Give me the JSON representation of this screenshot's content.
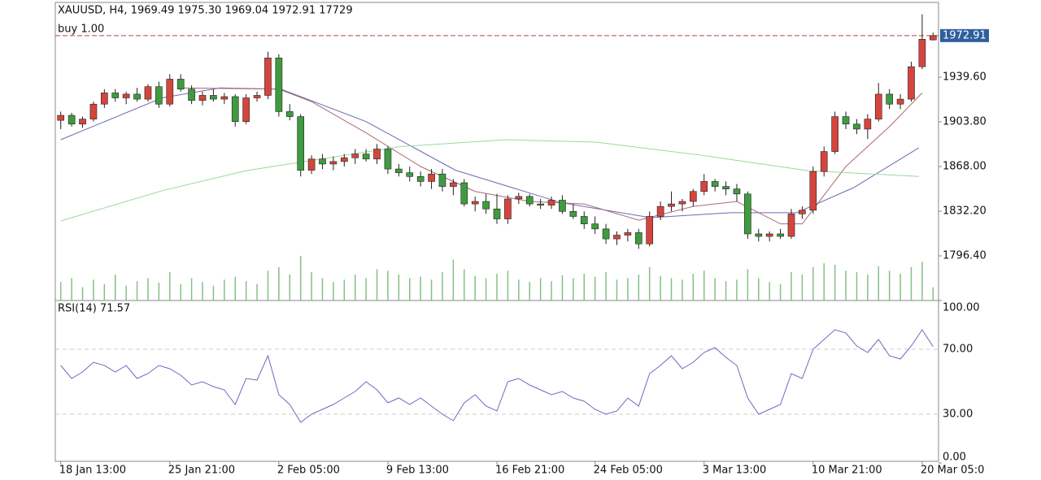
{
  "chart_data": {
    "type": "candlestick",
    "title": "XAUUSD, H4, 1969.49 1975.30 1969.04 1972.91 17729",
    "up_color": "#d5453d",
    "down_color": "#3f9b3f",
    "ohlc": [
      [
        1905,
        1912,
        1898,
        1909
      ],
      [
        1909,
        1911,
        1900,
        1902
      ],
      [
        1902,
        1908,
        1899,
        1906
      ],
      [
        1906,
        1920,
        1904,
        1918
      ],
      [
        1918,
        1930,
        1915,
        1927
      ],
      [
        1927,
        1930,
        1920,
        1923
      ],
      [
        1923,
        1928,
        1918,
        1926
      ],
      [
        1926,
        1931,
        1920,
        1922
      ],
      [
        1922,
        1934,
        1920,
        1932
      ],
      [
        1932,
        1936,
        1915,
        1918
      ],
      [
        1918,
        1942,
        1916,
        1938
      ],
      [
        1938,
        1942,
        1928,
        1930
      ],
      [
        1930,
        1933,
        1918,
        1921
      ],
      [
        1921,
        1928,
        1917,
        1925
      ],
      [
        1925,
        1930,
        1920,
        1922
      ],
      [
        1922,
        1927,
        1918,
        1924
      ],
      [
        1924,
        1926,
        1900,
        1904
      ],
      [
        1904,
        1926,
        1902,
        1923
      ],
      [
        1923,
        1928,
        1920,
        1925
      ],
      [
        1925,
        1960,
        1922,
        1955
      ],
      [
        1955,
        1958,
        1908,
        1912
      ],
      [
        1912,
        1918,
        1905,
        1908
      ],
      [
        1908,
        1910,
        1860,
        1865
      ],
      [
        1865,
        1877,
        1862,
        1874
      ],
      [
        1874,
        1878,
        1866,
        1870
      ],
      [
        1870,
        1876,
        1865,
        1872
      ],
      [
        1872,
        1878,
        1868,
        1875
      ],
      [
        1875,
        1882,
        1870,
        1878
      ],
      [
        1878,
        1882,
        1872,
        1874
      ],
      [
        1874,
        1886,
        1870,
        1882
      ],
      [
        1882,
        1884,
        1862,
        1866
      ],
      [
        1866,
        1870,
        1860,
        1863
      ],
      [
        1863,
        1868,
        1856,
        1860
      ],
      [
        1860,
        1864,
        1852,
        1856
      ],
      [
        1856,
        1866,
        1850,
        1862
      ],
      [
        1862,
        1866,
        1848,
        1852
      ],
      [
        1852,
        1858,
        1845,
        1855
      ],
      [
        1855,
        1858,
        1836,
        1838
      ],
      [
        1838,
        1844,
        1832,
        1840
      ],
      [
        1840,
        1846,
        1830,
        1834
      ],
      [
        1834,
        1846,
        1822,
        1826
      ],
      [
        1826,
        1845,
        1822,
        1842
      ],
      [
        1842,
        1847,
        1838,
        1844
      ],
      [
        1844,
        1846,
        1836,
        1838
      ],
      [
        1838,
        1842,
        1834,
        1837
      ],
      [
        1837,
        1844,
        1834,
        1841
      ],
      [
        1841,
        1845,
        1830,
        1832
      ],
      [
        1832,
        1838,
        1826,
        1828
      ],
      [
        1828,
        1832,
        1818,
        1822
      ],
      [
        1822,
        1828,
        1814,
        1818
      ],
      [
        1818,
        1822,
        1806,
        1810
      ],
      [
        1810,
        1816,
        1805,
        1813
      ],
      [
        1813,
        1818,
        1808,
        1815
      ],
      [
        1815,
        1818,
        1802,
        1806
      ],
      [
        1806,
        1832,
        1804,
        1828
      ],
      [
        1828,
        1840,
        1825,
        1836
      ],
      [
        1836,
        1848,
        1832,
        1838
      ],
      [
        1838,
        1842,
        1832,
        1840
      ],
      [
        1840,
        1850,
        1836,
        1848
      ],
      [
        1848,
        1862,
        1845,
        1856
      ],
      [
        1856,
        1858,
        1848,
        1852
      ],
      [
        1852,
        1856,
        1845,
        1850
      ],
      [
        1850,
        1854,
        1840,
        1846
      ],
      [
        1846,
        1848,
        1810,
        1814
      ],
      [
        1814,
        1818,
        1808,
        1812
      ],
      [
        1812,
        1816,
        1808,
        1814
      ],
      [
        1814,
        1818,
        1810,
        1812
      ],
      [
        1812,
        1834,
        1810,
        1830
      ],
      [
        1830,
        1836,
        1826,
        1833
      ],
      [
        1833,
        1868,
        1830,
        1864
      ],
      [
        1864,
        1884,
        1860,
        1880
      ],
      [
        1880,
        1912,
        1878,
        1908
      ],
      [
        1908,
        1912,
        1898,
        1902
      ],
      [
        1902,
        1906,
        1894,
        1898
      ],
      [
        1898,
        1910,
        1890,
        1906
      ],
      [
        1906,
        1935,
        1904,
        1926
      ],
      [
        1926,
        1930,
        1914,
        1918
      ],
      [
        1918,
        1926,
        1914,
        1922
      ],
      [
        1922,
        1952,
        1920,
        1948
      ],
      [
        1948,
        1990,
        1946,
        1970
      ],
      [
        1969.49,
        1975.3,
        1969.04,
        1972.91
      ]
    ],
    "volume": {
      "color": "#86bf86",
      "ylim": [
        0,
        60000
      ],
      "values": [
        25000,
        30000,
        18000,
        28000,
        22000,
        35000,
        20000,
        26000,
        30000,
        24000,
        38000,
        22000,
        30000,
        25000,
        20000,
        28000,
        32000,
        26000,
        22000,
        40000,
        45000,
        35000,
        60000,
        38000,
        30000,
        25000,
        28000,
        35000,
        30000,
        42000,
        40000,
        35000,
        30000,
        32000,
        28000,
        38000,
        55000,
        42000,
        33000,
        30000,
        36000,
        40000,
        28000,
        25000,
        30000,
        26000,
        34000,
        30000,
        36000,
        32000,
        38000,
        28000,
        30000,
        35000,
        45000,
        33000,
        30000,
        28000,
        36000,
        40000,
        30000,
        26000,
        28000,
        42000,
        30000,
        25000,
        22000,
        38000,
        35000,
        45000,
        50000,
        48000,
        40000,
        38000,
        35000,
        46000,
        40000,
        36000,
        45000,
        52000,
        17729
      ]
    },
    "xlim": [
      -0.5,
      80.5
    ],
    "xticks": [
      {
        "value": 0,
        "label": "18 Jan 13:00"
      },
      {
        "value": 10,
        "label": "25 Jan 21:00"
      },
      {
        "value": 20,
        "label": "2 Feb 05:00"
      },
      {
        "value": 30,
        "label": "9 Feb 13:00"
      },
      {
        "value": 40,
        "label": "16 Feb 21:00"
      },
      {
        "value": 49,
        "label": "24 Feb 05:00"
      },
      {
        "value": 59,
        "label": "3 Mar 13:00"
      },
      {
        "value": 69,
        "label": "10 Mar 21:00"
      },
      {
        "value": 79,
        "label": "20 Mar 05:0"
      }
    ],
    "ylim": [
      1760.6,
      1999.5
    ],
    "yticks": [
      {
        "value": 1796.4,
        "label": "1796.40"
      },
      {
        "value": 1832.2,
        "label": "1832.20"
      },
      {
        "value": 1868,
        "label": "1868.00"
      },
      {
        "value": 1903.8,
        "label": "1903.80"
      },
      {
        "value": 1939.6,
        "label": "1939.60"
      }
    ],
    "series": [
      {
        "color": "#6b6bb0",
        "x": [
          0,
          9.3,
          14.6,
          20.2,
          28,
          36.2,
          45.9,
          54.1,
          61.5,
          67.5,
          72.7,
          78.7
        ],
        "values": [
          1889.5,
          1923,
          1931,
          1930,
          1904,
          1865,
          1839,
          1827,
          1831,
          1831,
          1851,
          1883
        ]
      },
      {
        "color": "#a86a78",
        "x": [
          11,
          20,
          23,
          28,
          33,
          38,
          43,
          48,
          53,
          58,
          62,
          66,
          68,
          72,
          76,
          79
        ],
        "values": [
          1931,
          1930,
          1920,
          1895,
          1868,
          1848,
          1840,
          1838,
          1825,
          1836,
          1840,
          1822,
          1822,
          1868,
          1900,
          1927
        ]
      },
      {
        "color": "#9ad89a",
        "x": [
          0,
          9.3,
          17,
          31.2,
          40.9,
          49.1,
          58.8,
          68.5,
          78.7
        ],
        "values": [
          1824.4,
          1848.6,
          1864.7,
          1884,
          1889.5,
          1887.5,
          1877,
          1864.7,
          1860
        ]
      }
    ],
    "order": {
      "label": "buy 1.00",
      "price": 1972.91,
      "color": "#c04040",
      "box_color": "#2f5e9e"
    },
    "rsi": {
      "title": "RSI(14) 71.57",
      "color": "#6a6ac0",
      "ylim": [
        0,
        100
      ],
      "yticks": [
        {
          "value": 0,
          "label": "0.00"
        },
        {
          "value": 30,
          "label": "30.00"
        },
        {
          "value": 70,
          "label": "70.00"
        },
        {
          "value": 100,
          "label": "100.00"
        }
      ],
      "values": [
        60,
        52,
        56,
        62,
        60,
        56,
        60,
        52,
        55,
        60,
        58,
        54,
        48,
        50,
        47,
        45,
        36,
        52,
        51,
        66,
        42,
        36,
        25,
        30,
        33,
        36,
        40,
        44,
        50,
        45,
        37,
        40,
        36,
        40,
        35,
        30,
        26,
        37,
        42,
        35,
        32,
        50,
        52,
        48,
        45,
        42,
        44,
        40,
        38,
        33,
        30,
        32,
        40,
        35,
        55,
        60,
        66,
        58,
        62,
        68,
        71,
        65,
        60,
        40,
        30,
        33,
        36,
        55,
        52,
        70,
        76,
        82,
        80,
        72,
        68,
        76,
        66,
        64,
        72,
        82,
        71.57
      ]
    }
  }
}
